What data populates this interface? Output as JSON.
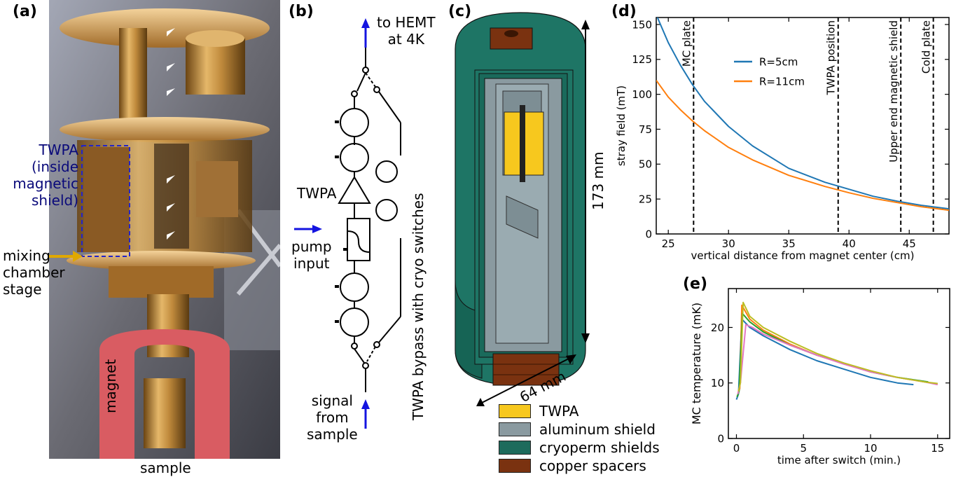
{
  "panels": {
    "a": {
      "label": "(a)",
      "twpa_label_lines": [
        "TWPA",
        "(inside",
        "magnetic",
        "shield)"
      ],
      "mixing_lines": [
        "mixing",
        "chamber",
        "stage"
      ],
      "magnet": "magnet",
      "sample": "sample"
    },
    "b": {
      "label": "(b)",
      "to_hemt_lines": [
        "to HEMT",
        "at 4K"
      ],
      "twpa": "TWPA",
      "pump_lines": [
        "pump",
        "input"
      ],
      "signal_lines": [
        "signal",
        "from",
        "sample"
      ],
      "bypass": "TWPA bypass with cryo switches"
    },
    "c": {
      "label": "(c)",
      "height_dim": "173 mm",
      "width_dim": "64 mm",
      "legend": [
        {
          "label": "TWPA",
          "color": "#f7c81e"
        },
        {
          "label": "aluminum shield",
          "color": "#8a9aa0"
        },
        {
          "label": "cryoperm shields",
          "color": "#1d6b5c"
        },
        {
          "label": "copper spacers",
          "color": "#7a3210"
        }
      ]
    }
  },
  "chart_data": [
    {
      "id": "d",
      "panel_label": "(d)",
      "type": "line",
      "xlabel": "vertical distance from magnet center (cm)",
      "ylabel": "stray field (mT)",
      "xlim": [
        24,
        48.3
      ],
      "ylim": [
        0,
        155
      ],
      "xticks": [
        25,
        30,
        35,
        40,
        45
      ],
      "yticks": [
        0,
        25,
        50,
        75,
        100,
        125,
        150
      ],
      "legend_position": "upper center",
      "series": [
        {
          "name": "R=5cm",
          "color": "#1f77b4",
          "x": [
            24,
            25,
            26,
            27,
            28,
            30,
            32,
            35,
            38,
            40,
            42,
            44,
            46,
            48.3
          ],
          "y": [
            157,
            137,
            121,
            107,
            95,
            77,
            63,
            47,
            37,
            32,
            27,
            23.5,
            20.5,
            18
          ]
        },
        {
          "name": "R=11cm",
          "color": "#ff7f0e",
          "x": [
            24,
            25,
            26,
            27,
            28,
            30,
            32,
            35,
            38,
            40,
            42,
            44,
            46,
            48.3
          ],
          "y": [
            110,
            98,
            89,
            81,
            74,
            62,
            53,
            42,
            34,
            29.5,
            25.5,
            22.5,
            19.5,
            17
          ]
        }
      ],
      "vlines": [
        {
          "x": 27.1,
          "label": "MC plate"
        },
        {
          "x": 39.1,
          "label": "TWPA position"
        },
        {
          "x": 44.3,
          "label": "Upper end magnetic shield"
        },
        {
          "x": 47.0,
          "label": "Cold plate"
        }
      ]
    },
    {
      "id": "e",
      "panel_label": "(e)",
      "type": "line",
      "xlabel": "time after switch (min.)",
      "ylabel": "MC temperature (mK)",
      "xlim": [
        -0.6,
        15.9
      ],
      "ylim": [
        0,
        27
      ],
      "xticks": [
        0,
        5,
        10,
        15
      ],
      "yticks": [
        0,
        10,
        20
      ],
      "series": [
        {
          "color": "#1f77b4",
          "x": [
            0,
            0.15,
            0.4,
            1,
            2,
            4,
            6,
            8,
            10,
            12,
            13.2
          ],
          "y": [
            7,
            8,
            21.5,
            20,
            18.5,
            16,
            14,
            12.5,
            11,
            10,
            9.7
          ]
        },
        {
          "color": "#ff7f0e",
          "x": [
            0.1,
            0.25,
            0.4,
            1,
            2,
            4,
            6,
            8,
            10,
            12,
            14,
            15
          ],
          "y": [
            8,
            9,
            24,
            21.5,
            19.5,
            17,
            15,
            13.5,
            12,
            11,
            10.2,
            9.8
          ]
        },
        {
          "color": "#2ca02c",
          "x": [
            0.05,
            0.2,
            0.45,
            1,
            2,
            4,
            6,
            8,
            10,
            12,
            14.3
          ],
          "y": [
            7.5,
            8.5,
            22.5,
            21,
            19.2,
            16.8,
            15,
            13.5,
            12,
            11,
            10.2
          ]
        },
        {
          "color": "#e377c2",
          "x": [
            0.1,
            0.3,
            0.7,
            1.2,
            2,
            4,
            6,
            8,
            10,
            12,
            14,
            15
          ],
          "y": [
            8,
            10,
            20.5,
            20,
            18.8,
            16.8,
            15,
            13.4,
            12,
            11,
            10.2,
            9.7
          ]
        },
        {
          "color": "#bcbd22",
          "x": [
            0.15,
            0.3,
            0.5,
            1,
            2,
            4,
            6,
            8,
            10,
            12,
            14,
            15
          ],
          "y": [
            8.5,
            10,
            24.5,
            22,
            20,
            17.5,
            15.3,
            13.6,
            12.2,
            11,
            10.2,
            9.9
          ]
        }
      ]
    }
  ]
}
